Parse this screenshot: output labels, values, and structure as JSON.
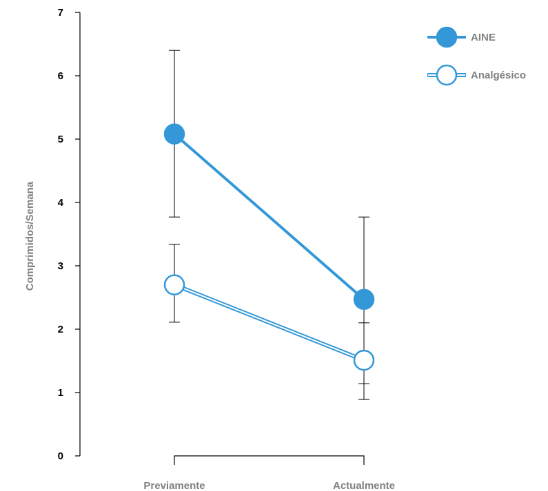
{
  "chart_data": {
    "type": "line",
    "ylabel": "Comprimidos/Semana",
    "xlabel": "",
    "categories": [
      "Previamente",
      "Actualmente"
    ],
    "ylim": [
      0,
      7
    ],
    "yticks": [
      "0",
      "1",
      "2",
      "3",
      "4",
      "5",
      "6",
      "7"
    ],
    "grid": false,
    "legend_position": "top-right",
    "series": [
      {
        "name": "AINE",
        "marker": "filled",
        "values": [
          5.08,
          2.47
        ],
        "error_low": [
          3.77,
          1.14
        ],
        "error_high": [
          6.4,
          3.77
        ]
      },
      {
        "name": "Analgésico",
        "marker": "open",
        "values": [
          2.7,
          1.51
        ],
        "error_low": [
          2.11,
          0.89
        ],
        "error_high": [
          3.34,
          2.1
        ]
      }
    ]
  },
  "colors": {
    "series": "#3498d8",
    "axis": "#000000",
    "label": "#808080"
  }
}
